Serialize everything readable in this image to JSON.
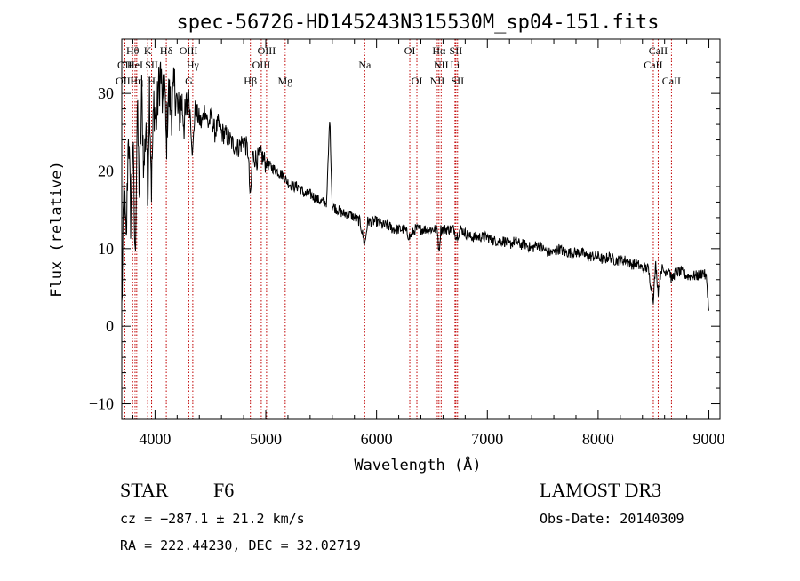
{
  "chart_data": {
    "type": "line",
    "title": "spec-56726-HD145243N315530M_sp04-151.fits",
    "xlabel": "Wavelength (Å)",
    "ylabel": "Flux (relative)",
    "xlim": [
      3700,
      9100
    ],
    "ylim": [
      -12,
      37
    ],
    "xticks": [
      4000,
      5000,
      6000,
      7000,
      8000,
      9000
    ],
    "yticks": [
      -10,
      0,
      10,
      20,
      30
    ],
    "series": [
      {
        "name": "spectrum",
        "x": [
          3700,
          3720,
          3740,
          3760,
          3780,
          3800,
          3820,
          3840,
          3860,
          3880,
          3900,
          3920,
          3933,
          3950,
          3968,
          3990,
          4010,
          4030,
          4050,
          4070,
          4085,
          4101,
          4120,
          4150,
          4180,
          4210,
          4240,
          4270,
          4300,
          4320,
          4340,
          4360,
          4390,
          4420,
          4450,
          4480,
          4510,
          4540,
          4570,
          4600,
          4650,
          4700,
          4750,
          4800,
          4840,
          4861,
          4880,
          4920,
          4960,
          5000,
          5050,
          5100,
          5150,
          5200,
          5250,
          5300,
          5350,
          5400,
          5450,
          5500,
          5550,
          5577,
          5600,
          5650,
          5700,
          5750,
          5800,
          5850,
          5893,
          5920,
          5950,
          6000,
          6050,
          6100,
          6150,
          6200,
          6250,
          6300,
          6350,
          6400,
          6450,
          6500,
          6550,
          6563,
          6580,
          6620,
          6660,
          6700,
          6720,
          6760,
          6800,
          6850,
          6900,
          6950,
          7000,
          7050,
          7100,
          7150,
          7200,
          7250,
          7300,
          7350,
          7400,
          7450,
          7500,
          7550,
          7600,
          7650,
          7700,
          7750,
          7800,
          7850,
          7900,
          7950,
          8000,
          8050,
          8100,
          8150,
          8200,
          8250,
          8300,
          8350,
          8400,
          8450,
          8498,
          8520,
          8542,
          8570,
          8600,
          8640,
          8662,
          8700,
          8750,
          8800,
          8850,
          8900,
          8950,
          8980,
          9000
        ],
        "y": [
          2,
          18,
          10,
          26,
          14,
          24,
          8,
          28,
          17,
          30,
          20,
          27,
          16,
          31,
          18,
          29,
          26,
          30,
          33,
          28,
          32,
          23,
          30,
          28,
          31,
          27,
          29,
          26,
          30,
          27,
          22,
          28,
          27,
          26,
          28,
          26,
          27,
          25,
          26,
          25,
          24.5,
          23.5,
          23,
          24,
          22.5,
          16,
          22,
          21.5,
          22,
          21,
          20.5,
          20,
          19.5,
          18.5,
          18,
          18,
          17,
          17,
          16.5,
          16,
          16,
          27,
          15.5,
          15,
          14.5,
          14.5,
          14,
          13.5,
          10.5,
          13.5,
          13.5,
          13.5,
          13,
          13,
          12.5,
          12.5,
          12.5,
          11.5,
          12.5,
          12.5,
          12.5,
          12.5,
          12.5,
          9.5,
          12.5,
          12.5,
          12.5,
          12.5,
          11.5,
          12.5,
          12,
          11.5,
          11.5,
          11.5,
          11.5,
          11,
          11,
          11,
          10.5,
          11,
          10.5,
          10.5,
          10,
          10.5,
          10,
          9.5,
          9.5,
          10,
          9.5,
          9.5,
          9.5,
          9.5,
          9,
          9,
          9,
          8.5,
          9,
          8.5,
          8.5,
          8.5,
          8,
          8,
          7.5,
          7.5,
          3.5,
          8,
          4.5,
          7.5,
          7,
          7.5,
          6,
          7,
          7,
          6.5,
          6.5,
          6.5,
          7,
          6,
          2
        ]
      }
    ],
    "spectral_lines": [
      {
        "label": "Hθ",
        "x": 3798,
        "tier": 1
      },
      {
        "label": "OII",
        "x": 3727,
        "tier": 2
      },
      {
        "label": "OIII",
        "x": 3727,
        "tier": 3
      },
      {
        "label": "HeI",
        "x": 3820,
        "tier": 2
      },
      {
        "label": "Hη",
        "x": 3835,
        "tier": 3
      },
      {
        "label": "K",
        "x": 3934,
        "tier": 1
      },
      {
        "label": "SII",
        "x": 3969,
        "tier": 2
      },
      {
        "label": "H",
        "x": 3969,
        "tier": 3
      },
      {
        "label": "Hδ",
        "x": 4102,
        "tier": 1
      },
      {
        "label": "OIII",
        "x": 4302,
        "tier": 1
      },
      {
        "label": "Hγ",
        "x": 4341,
        "tier": 2
      },
      {
        "label": "G",
        "x": 4305,
        "tier": 3
      },
      {
        "label": "OIII",
        "x": 5007,
        "tier": 1
      },
      {
        "label": "OIII",
        "x": 4959,
        "tier": 2
      },
      {
        "label": "Hβ",
        "x": 4861,
        "tier": 3
      },
      {
        "label": "Mg",
        "x": 5175,
        "tier": 3
      },
      {
        "label": "Na",
        "x": 5893,
        "tier": 2
      },
      {
        "label": "OI",
        "x": 6300,
        "tier": 1
      },
      {
        "label": "OI",
        "x": 6364,
        "tier": 3
      },
      {
        "label": "Hα",
        "x": 6563,
        "tier": 1
      },
      {
        "label": "SII",
        "x": 6716,
        "tier": 1
      },
      {
        "label": "NII",
        "x": 6583,
        "tier": 2
      },
      {
        "label": "Li",
        "x": 6708,
        "tier": 2
      },
      {
        "label": "NII",
        "x": 6548,
        "tier": 3
      },
      {
        "label": "SII",
        "x": 6731,
        "tier": 3
      },
      {
        "label": "CaII",
        "x": 8542,
        "tier": 1
      },
      {
        "label": "CaII",
        "x": 8498,
        "tier": 2
      },
      {
        "label": "CaII",
        "x": 8662,
        "tier": 3
      }
    ]
  },
  "info": {
    "object_class": "STAR",
    "subclass": "F6",
    "survey": "LAMOST DR3",
    "redshift": "cz = −287.1 ± 21.2 km/s",
    "obs_date": "Obs-Date: 20140309",
    "coords": "RA = 222.44230, DEC =  32.02719"
  },
  "colors": {
    "line_marker": "#c00000",
    "spectrum": "#000000",
    "axis": "#000000"
  }
}
